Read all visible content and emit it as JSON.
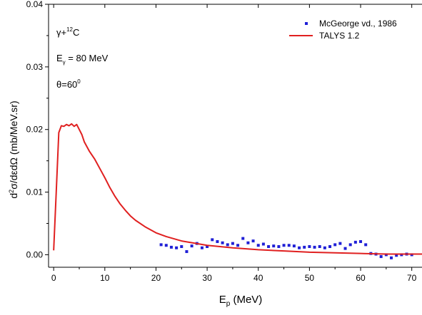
{
  "chart_data": {
    "type": "line",
    "title": "",
    "xlabel": "E_p (MeV)",
    "ylabel": "d²σ/dεdΩ (mb/MeV.sr)",
    "xlim": [
      -1,
      72
    ],
    "ylim": [
      -0.002,
      0.04
    ],
    "x_ticks": [
      0,
      10,
      20,
      30,
      40,
      50,
      60,
      70
    ],
    "y_ticks": [
      0.0,
      0.01,
      0.02,
      0.03,
      0.04
    ],
    "y_tick_labels": [
      "0.00",
      "0.01",
      "0.02",
      "0.03",
      "0.04"
    ],
    "grid": false,
    "legend_position": "top-right",
    "annotations": {
      "reaction": "γ+¹²C",
      "energy": "Eγ = 80 MeV",
      "angle": "θ=60⁰"
    },
    "series": [
      {
        "name": "McGeorge vd., 1986",
        "kind": "scatter",
        "color": "#1f1fd6",
        "x": [
          21,
          22,
          23,
          24,
          25,
          26,
          27,
          28,
          29,
          30,
          31,
          32,
          33,
          34,
          35,
          36,
          37,
          38,
          39,
          40,
          41,
          42,
          43,
          44,
          45,
          46,
          47,
          48,
          49,
          50,
          51,
          52,
          53,
          54,
          55,
          56,
          57,
          58,
          59,
          60,
          61,
          62,
          63,
          64,
          65,
          66,
          67,
          68,
          69,
          70
        ],
        "y": [
          0.0016,
          0.0015,
          0.0012,
          0.0011,
          0.0013,
          0.0005,
          0.0014,
          0.0018,
          0.0011,
          0.0013,
          0.0024,
          0.0021,
          0.0019,
          0.0016,
          0.0018,
          0.0015,
          0.0026,
          0.0019,
          0.0022,
          0.0015,
          0.0017,
          0.0013,
          0.0014,
          0.0013,
          0.0015,
          0.0015,
          0.0014,
          0.0011,
          0.0012,
          0.0013,
          0.0012,
          0.0013,
          0.0011,
          0.0013,
          0.0016,
          0.0018,
          0.001,
          0.0016,
          0.002,
          0.0021,
          0.0016,
          0.0002,
          0.0001,
          -0.0003,
          0.0,
          -0.0005,
          -0.0001,
          0.0,
          0.0001,
          0.0
        ]
      },
      {
        "name": "TALYS 1.2",
        "kind": "line",
        "color": "#e02020",
        "x": [
          0,
          0.5,
          1,
          1.5,
          2,
          2.5,
          3,
          3.5,
          4,
          4.5,
          5,
          5.5,
          6,
          7,
          8,
          9,
          10,
          11,
          12,
          13,
          14,
          15,
          16,
          18,
          20,
          22,
          25,
          30,
          35,
          40,
          45,
          50,
          55,
          60,
          65,
          70,
          72
        ],
        "y": [
          0.0007,
          0.01,
          0.0195,
          0.0206,
          0.0205,
          0.0208,
          0.0206,
          0.0209,
          0.0205,
          0.0208,
          0.02,
          0.0192,
          0.018,
          0.0165,
          0.0153,
          0.0138,
          0.0123,
          0.0107,
          0.0093,
          0.0081,
          0.0071,
          0.0062,
          0.0055,
          0.0044,
          0.0035,
          0.0029,
          0.0022,
          0.0015,
          0.0011,
          0.0008,
          0.0006,
          0.0004,
          0.0003,
          0.0002,
          0.0001,
          0.0001,
          0.0001
        ]
      }
    ]
  }
}
